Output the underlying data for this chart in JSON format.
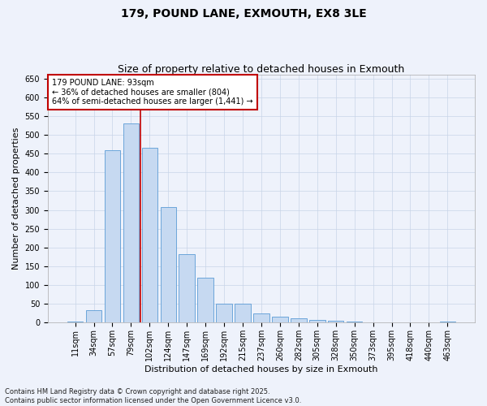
{
  "title": "179, POUND LANE, EXMOUTH, EX8 3LE",
  "subtitle": "Size of property relative to detached houses in Exmouth",
  "xlabel": "Distribution of detached houses by size in Exmouth",
  "ylabel": "Number of detached properties",
  "footer_line1": "Contains HM Land Registry data © Crown copyright and database right 2025.",
  "footer_line2": "Contains public sector information licensed under the Open Government Licence v3.0.",
  "categories": [
    "11sqm",
    "34sqm",
    "57sqm",
    "79sqm",
    "102sqm",
    "124sqm",
    "147sqm",
    "169sqm",
    "192sqm",
    "215sqm",
    "237sqm",
    "260sqm",
    "282sqm",
    "305sqm",
    "328sqm",
    "350sqm",
    "373sqm",
    "395sqm",
    "418sqm",
    "440sqm",
    "463sqm"
  ],
  "values": [
    3,
    33,
    458,
    530,
    465,
    308,
    182,
    120,
    50,
    50,
    25,
    15,
    12,
    8,
    5,
    3,
    1,
    1,
    0,
    1,
    3
  ],
  "bar_color": "#c6d9f1",
  "bar_edge_color": "#5b9bd5",
  "vline_color": "#c00000",
  "vline_x": 3.5,
  "annotation_title": "179 POUND LANE: 93sqm",
  "annotation_line1": "← 36% of detached houses are smaller (804)",
  "annotation_line2": "64% of semi-detached houses are larger (1,441) →",
  "annotation_box_color": "#c00000",
  "ylim": [
    0,
    660
  ],
  "yticks": [
    0,
    50,
    100,
    150,
    200,
    250,
    300,
    350,
    400,
    450,
    500,
    550,
    600,
    650
  ],
  "bg_color": "#eef2fb",
  "grid_color": "#c8d4e8",
  "title_fontsize": 10,
  "subtitle_fontsize": 9,
  "ylabel_fontsize": 8,
  "xlabel_fontsize": 8,
  "tick_fontsize": 7,
  "footer_fontsize": 6
}
